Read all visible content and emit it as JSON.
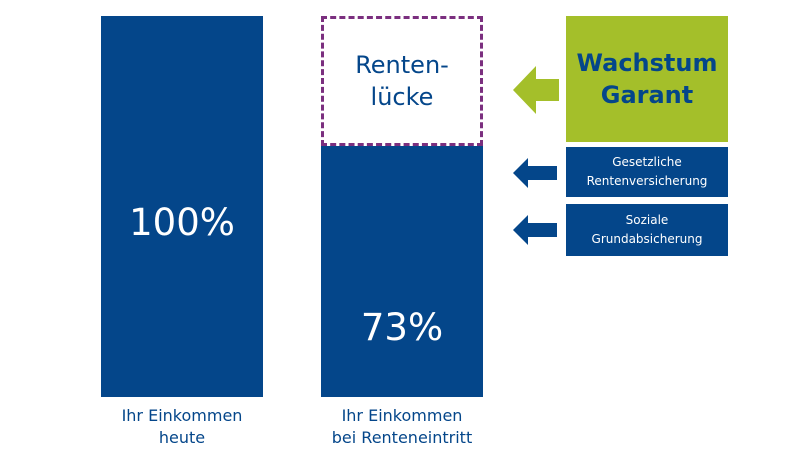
{
  "bars": {
    "today": {
      "value_label": "100%",
      "caption_line1": "Ihr Einkommen",
      "caption_line2": "heute"
    },
    "retirement": {
      "value_label": "73%",
      "caption_line1": "Ihr Einkommen",
      "caption_line2": "bei Renteneintritt"
    }
  },
  "gap": {
    "line1": "Renten-",
    "line2": "lücke"
  },
  "sources": {
    "growth": {
      "line1": "Wachstum",
      "line2": "Garant"
    },
    "statutory": {
      "line1": "Gesetzliche",
      "line2": "Rentenversicherung"
    },
    "social": {
      "line1": "Soziale",
      "line2": "Grundabsicherung"
    }
  },
  "colors": {
    "navy": "#04468a",
    "green": "#a4bf2a",
    "gap_border": "#7b2f7f"
  }
}
